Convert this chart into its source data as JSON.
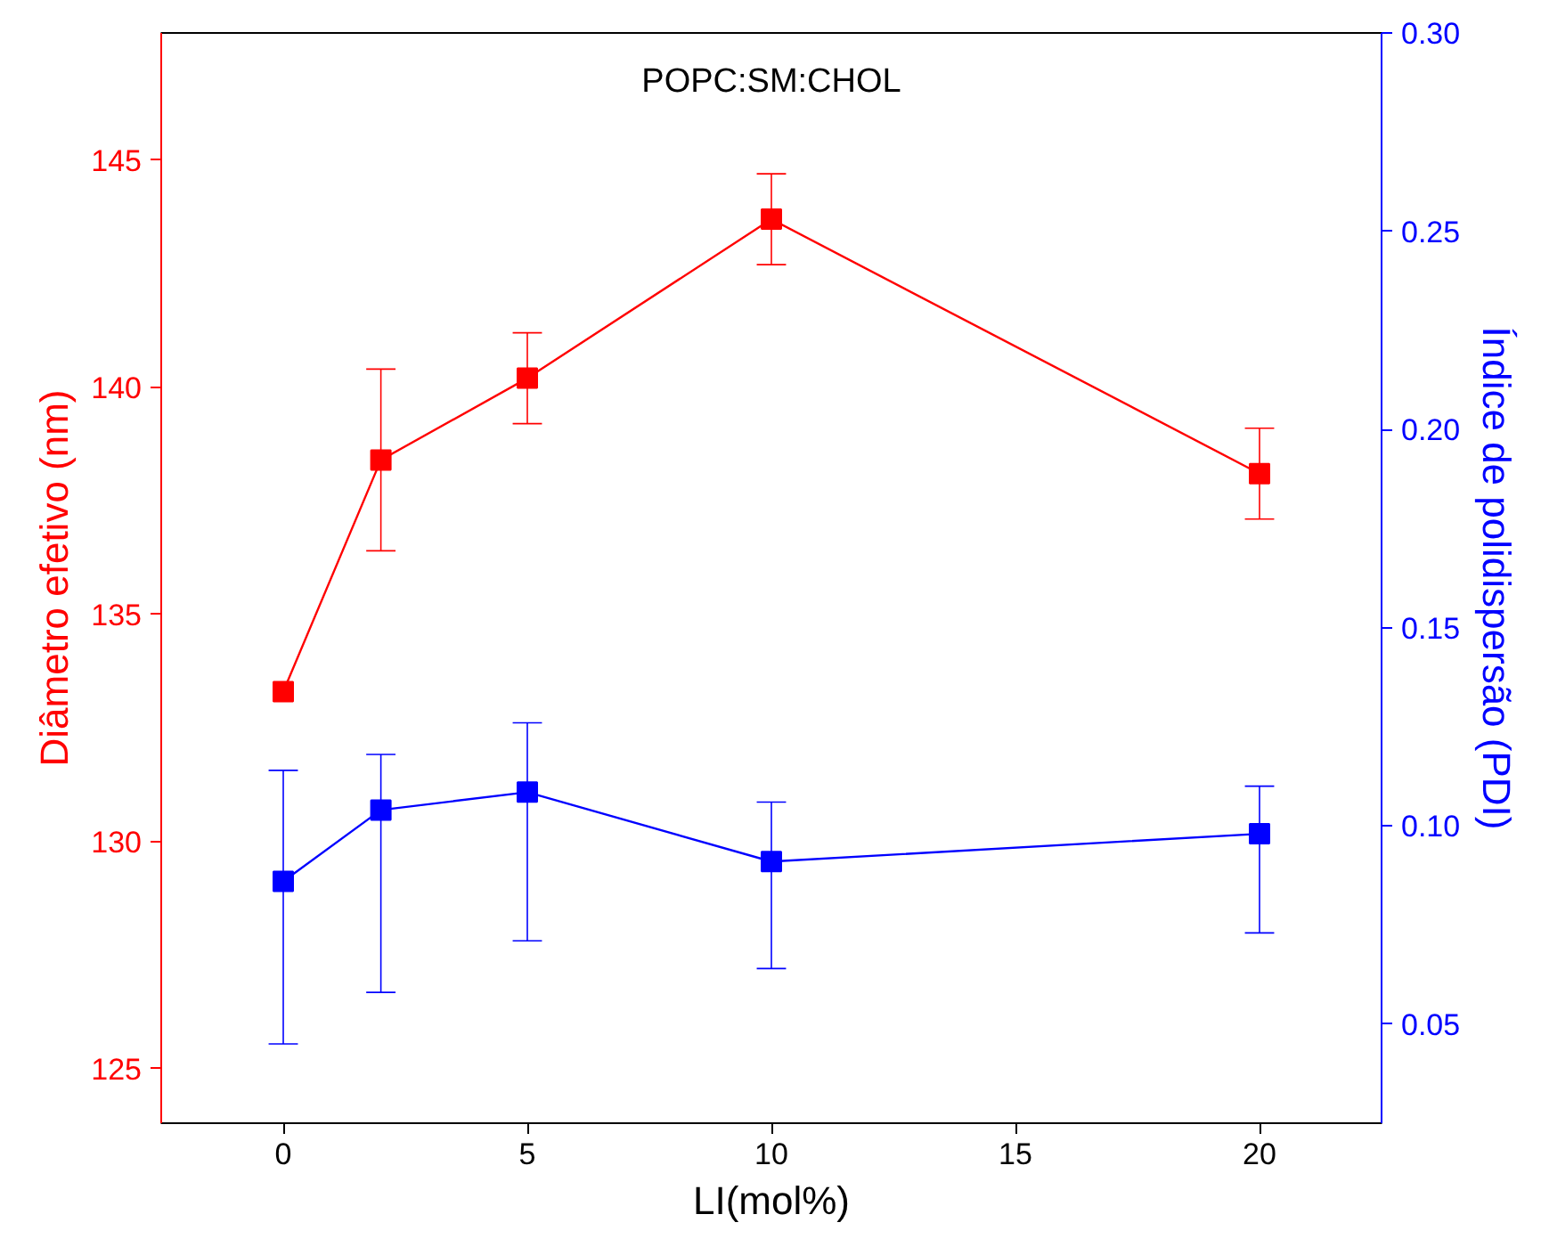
{
  "chart_data": {
    "type": "line",
    "title": "POPC:SM:CHOL",
    "xlabel": "LI(mol%)",
    "ylabel": "Diâmetro efetivo (nm)",
    "y2label": "Índice de polidispersão (PDI)",
    "x": [
      0,
      2,
      5,
      10,
      20
    ],
    "series": [
      {
        "color": "#ff0000",
        "values": [
          133.3,
          138.4,
          140.2,
          143.7,
          138.1
        ],
        "errors": [
          null,
          2.0,
          1.0,
          1.0,
          1.0
        ]
      },
      {
        "color": "#0000ff",
        "axis": "y2",
        "values": [
          0.086,
          0.104,
          0.1085,
          0.091,
          0.098
        ],
        "errors": [
          [
            0.045,
            0.114
          ],
          [
            0.058,
            0.118
          ],
          [
            0.071,
            0.126
          ],
          [
            0.064,
            0.106
          ],
          [
            0.073,
            0.11
          ]
        ]
      }
    ],
    "xlim": [
      -2.5,
      22.5
    ],
    "xticks": [
      0,
      5,
      10,
      15,
      20
    ],
    "ylim": [
      123.8,
      147.8
    ],
    "yticks": [
      125,
      130,
      135,
      140,
      145
    ],
    "y2lim": [
      0.025,
      0.3
    ],
    "y2ticks": [
      {
        "value": 0.05,
        "label": "0.05"
      },
      {
        "value": 0.1,
        "label": "0.10"
      },
      {
        "value": 0.15,
        "label": "0.15"
      },
      {
        "value": 0.2,
        "label": "0.20"
      },
      {
        "value": 0.25,
        "label": "0.25"
      },
      {
        "value": 0.3,
        "label": "0.30"
      }
    ],
    "marker": "square",
    "line_style": "solid",
    "grid": false
  }
}
